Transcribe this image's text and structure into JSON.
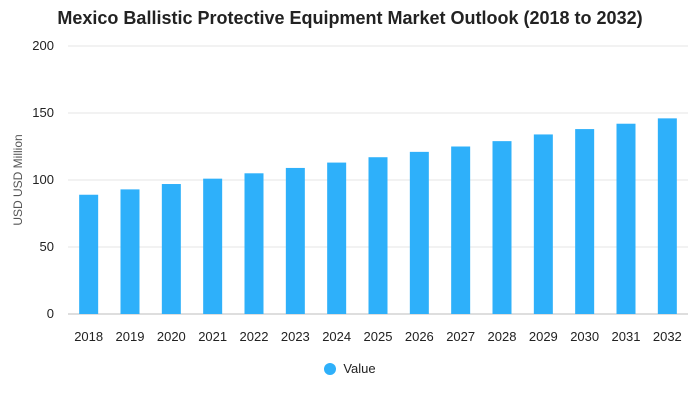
{
  "chart_data": {
    "type": "bar",
    "title": "Mexico Ballistic Protective Equipment Market Outlook (2018 to 2032)",
    "xlabel": "",
    "ylabel": "USD USD Million",
    "ylim": [
      0,
      200
    ],
    "yticks": [
      0,
      50,
      100,
      150,
      200
    ],
    "grid": true,
    "legend_position": "bottom",
    "categories": [
      "2018",
      "2019",
      "2020",
      "2021",
      "2022",
      "2023",
      "2024",
      "2025",
      "2026",
      "2027",
      "2028",
      "2029",
      "2030",
      "2031",
      "2032"
    ],
    "series": [
      {
        "name": "Value",
        "color": "#2eb0fa",
        "values": [
          89,
          93,
          97,
          101,
          105,
          109,
          113,
          117,
          121,
          125,
          129,
          134,
          138,
          142,
          146
        ]
      }
    ]
  }
}
